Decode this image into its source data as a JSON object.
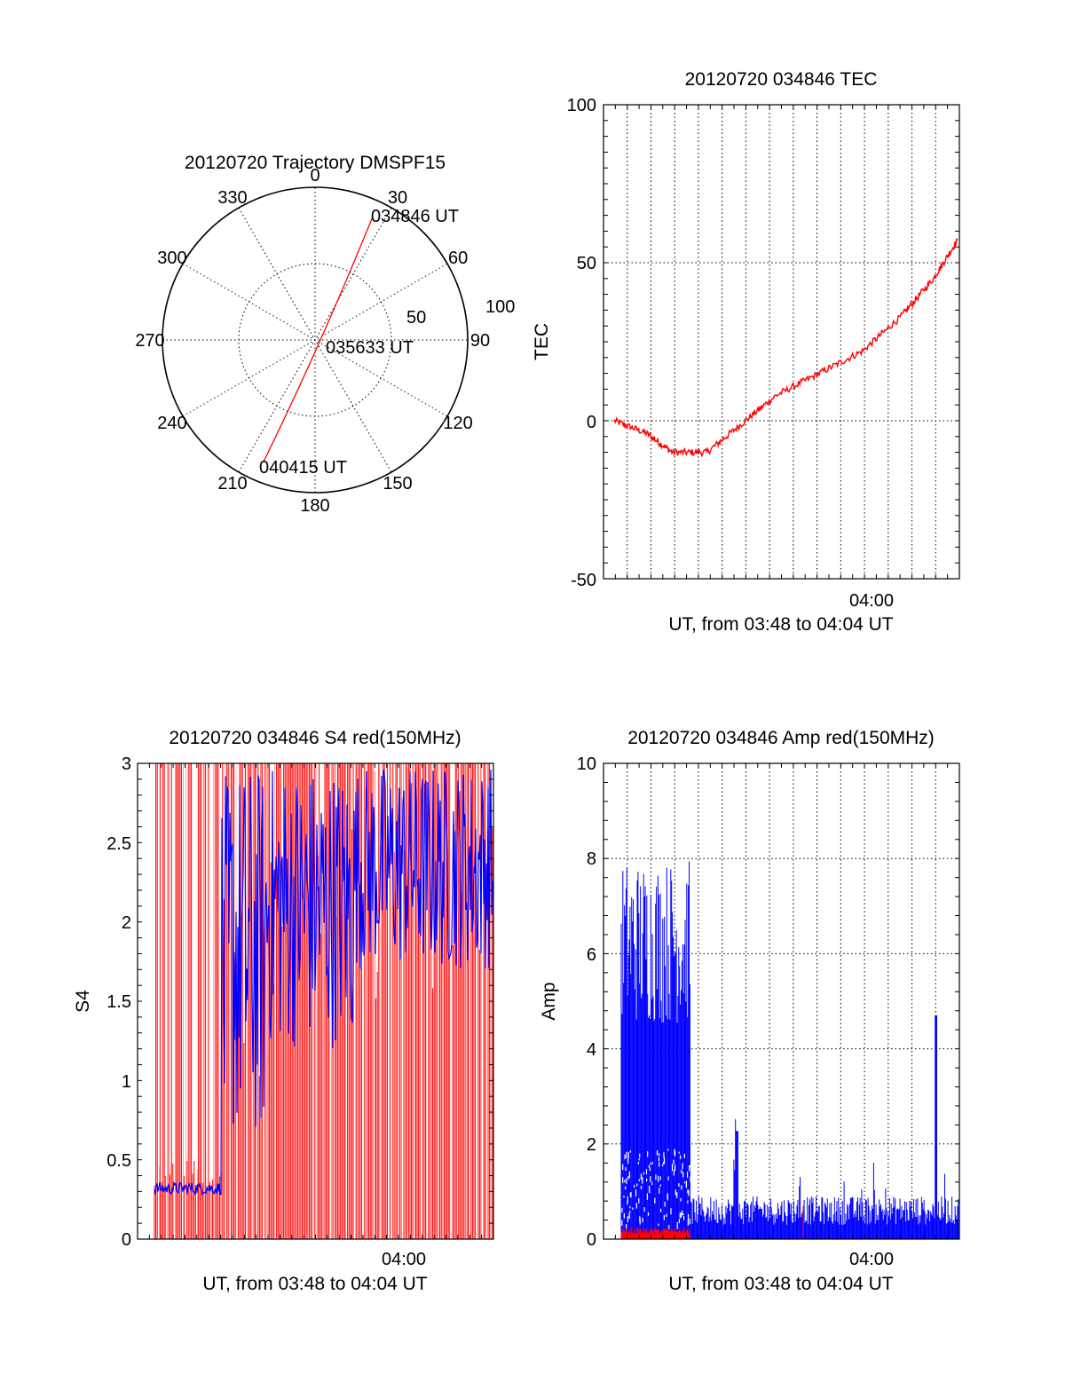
{
  "chart_data": [
    {
      "type": "polar-trajectory",
      "title": "20120720 Trajectory DMSPF15",
      "angle_labels": [
        "0",
        "30",
        "60",
        "90",
        "120",
        "150",
        "180",
        "210",
        "240",
        "270",
        "300",
        "330"
      ],
      "radius_labels": [
        "50",
        "100"
      ],
      "point_labels": [
        {
          "text": "034846 UT",
          "azimuth": 28,
          "elevation": 3
        },
        {
          "text": "035633 UT",
          "azimuth": 60,
          "elevation": 89
        },
        {
          "text": "040415 UT",
          "azimuth": 212,
          "elevation": 14
        }
      ],
      "colors": {
        "track": "#ff0000"
      }
    },
    {
      "type": "line",
      "title": "20120720 034846 TEC",
      "xlabel": "UT, from 03:48 to 04:04 UT",
      "ylabel": "TEC",
      "ylim": [
        -50,
        100
      ],
      "yticks": [
        "100",
        "50",
        "0",
        "-50"
      ],
      "xtick_label": "04:00",
      "series": [
        {
          "color": "#ff0000",
          "x_min": [
            0.5,
            2.0,
            3.2,
            4.8,
            6.4,
            8.0,
            10.0,
            12.0,
            13.8,
            15.3,
            16.4
          ],
          "values": [
            0,
            -4,
            -10,
            -10,
            -1,
            8,
            15,
            22,
            33,
            45,
            57
          ]
        }
      ]
    },
    {
      "type": "line",
      "title": "20120720 034846 S4 red(150MHz)",
      "xlabel": "UT, from 03:48 to 04:04 UT",
      "ylabel": "S4",
      "ylim": [
        0,
        3
      ],
      "yticks": [
        "3",
        "2.5",
        "2",
        "1.5",
        "1",
        "0.5",
        "0"
      ],
      "xtick_label": "04:00",
      "series": [
        {
          "color": "#ff0000",
          "description_values": "dense spikes between 0 and 3 across the whole interval"
        },
        {
          "color": "#0000ff",
          "x_min": [
            0.0,
            0.5,
            1.5,
            3.2,
            4.2,
            4.9,
            5.3,
            6.0,
            7.0,
            8.0,
            9.0,
            10.0,
            12.0,
            14.0,
            16.0
          ],
          "values": [
            0.32,
            0.32,
            0.33,
            0.35,
            3.0,
            1.4,
            0.6,
            3.0,
            2.0,
            2.6,
            1.5,
            2.5,
            2.6,
            2.7,
            2.4
          ]
        }
      ]
    },
    {
      "type": "line",
      "title": "20120720 034846 Amp red(150MHz)",
      "xlabel": "UT, from 03:48 to 04:04 UT",
      "ylabel": "Amp",
      "ylim": [
        0,
        10
      ],
      "yticks": [
        "10",
        "8",
        "6",
        "4",
        "2",
        "0"
      ],
      "xtick_label": "04:00",
      "series": [
        {
          "color": "#0000ff",
          "x_min": [
            0.2,
            1.0,
            2.0,
            3.0,
            3.5,
            5.4,
            6.0,
            8.5,
            12.0,
            15.0,
            15.8,
            16.2
          ],
          "values": [
            7.5,
            8.3,
            8.4,
            8.0,
            8.7,
            2.6,
            1.3,
            1.6,
            1.5,
            1.6,
            4.7,
            1.2
          ]
        },
        {
          "color": "#ff0000",
          "x_min": [
            0.2,
            3.5
          ],
          "values": [
            0.2,
            0.2
          ]
        }
      ]
    }
  ]
}
